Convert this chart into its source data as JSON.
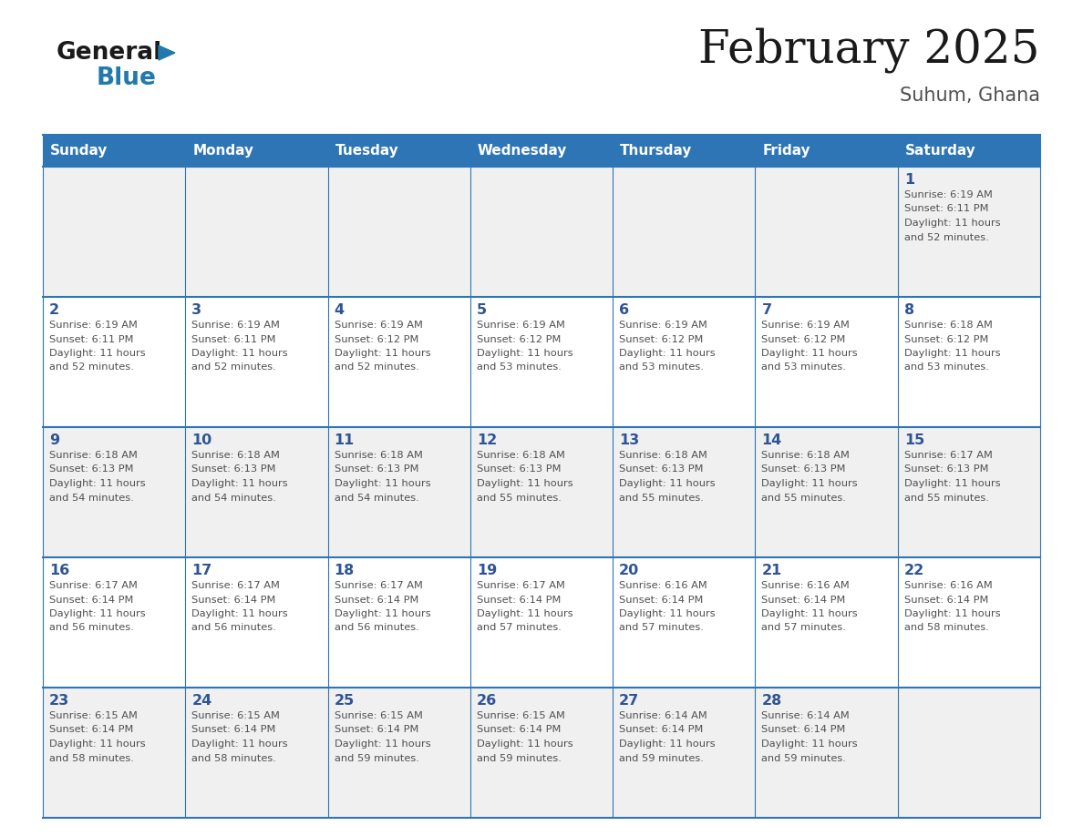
{
  "title": "February 2025",
  "subtitle": "Suhum, Ghana",
  "days_of_week": [
    "Sunday",
    "Monday",
    "Tuesday",
    "Wednesday",
    "Thursday",
    "Friday",
    "Saturday"
  ],
  "header_bg": "#2E75B6",
  "header_text_color": "#FFFFFF",
  "row_bg_odd": "#F0F0F0",
  "row_bg_even": "#FFFFFF",
  "border_color": "#2E75B6",
  "day_number_color": "#2E5496",
  "text_color": "#505050",
  "title_color": "#1a1a1a",
  "subtitle_color": "#505050",
  "calendar": [
    [
      null,
      null,
      null,
      null,
      null,
      null,
      {
        "day": 1,
        "sunrise": "6:19 AM",
        "sunset": "6:11 PM",
        "daylight_h": "11 hours",
        "daylight_m": "52 minutes"
      }
    ],
    [
      {
        "day": 2,
        "sunrise": "6:19 AM",
        "sunset": "6:11 PM",
        "daylight_h": "11 hours",
        "daylight_m": "52 minutes"
      },
      {
        "day": 3,
        "sunrise": "6:19 AM",
        "sunset": "6:11 PM",
        "daylight_h": "11 hours",
        "daylight_m": "52 minutes"
      },
      {
        "day": 4,
        "sunrise": "6:19 AM",
        "sunset": "6:12 PM",
        "daylight_h": "11 hours",
        "daylight_m": "52 minutes"
      },
      {
        "day": 5,
        "sunrise": "6:19 AM",
        "sunset": "6:12 PM",
        "daylight_h": "11 hours",
        "daylight_m": "53 minutes"
      },
      {
        "day": 6,
        "sunrise": "6:19 AM",
        "sunset": "6:12 PM",
        "daylight_h": "11 hours",
        "daylight_m": "53 minutes"
      },
      {
        "day": 7,
        "sunrise": "6:19 AM",
        "sunset": "6:12 PM",
        "daylight_h": "11 hours",
        "daylight_m": "53 minutes"
      },
      {
        "day": 8,
        "sunrise": "6:18 AM",
        "sunset": "6:12 PM",
        "daylight_h": "11 hours",
        "daylight_m": "53 minutes"
      }
    ],
    [
      {
        "day": 9,
        "sunrise": "6:18 AM",
        "sunset": "6:13 PM",
        "daylight_h": "11 hours",
        "daylight_m": "54 minutes"
      },
      {
        "day": 10,
        "sunrise": "6:18 AM",
        "sunset": "6:13 PM",
        "daylight_h": "11 hours",
        "daylight_m": "54 minutes"
      },
      {
        "day": 11,
        "sunrise": "6:18 AM",
        "sunset": "6:13 PM",
        "daylight_h": "11 hours",
        "daylight_m": "54 minutes"
      },
      {
        "day": 12,
        "sunrise": "6:18 AM",
        "sunset": "6:13 PM",
        "daylight_h": "11 hours",
        "daylight_m": "55 minutes"
      },
      {
        "day": 13,
        "sunrise": "6:18 AM",
        "sunset": "6:13 PM",
        "daylight_h": "11 hours",
        "daylight_m": "55 minutes"
      },
      {
        "day": 14,
        "sunrise": "6:18 AM",
        "sunset": "6:13 PM",
        "daylight_h": "11 hours",
        "daylight_m": "55 minutes"
      },
      {
        "day": 15,
        "sunrise": "6:17 AM",
        "sunset": "6:13 PM",
        "daylight_h": "11 hours",
        "daylight_m": "55 minutes"
      }
    ],
    [
      {
        "day": 16,
        "sunrise": "6:17 AM",
        "sunset": "6:14 PM",
        "daylight_h": "11 hours",
        "daylight_m": "56 minutes"
      },
      {
        "day": 17,
        "sunrise": "6:17 AM",
        "sunset": "6:14 PM",
        "daylight_h": "11 hours",
        "daylight_m": "56 minutes"
      },
      {
        "day": 18,
        "sunrise": "6:17 AM",
        "sunset": "6:14 PM",
        "daylight_h": "11 hours",
        "daylight_m": "56 minutes"
      },
      {
        "day": 19,
        "sunrise": "6:17 AM",
        "sunset": "6:14 PM",
        "daylight_h": "11 hours",
        "daylight_m": "57 minutes"
      },
      {
        "day": 20,
        "sunrise": "6:16 AM",
        "sunset": "6:14 PM",
        "daylight_h": "11 hours",
        "daylight_m": "57 minutes"
      },
      {
        "day": 21,
        "sunrise": "6:16 AM",
        "sunset": "6:14 PM",
        "daylight_h": "11 hours",
        "daylight_m": "57 minutes"
      },
      {
        "day": 22,
        "sunrise": "6:16 AM",
        "sunset": "6:14 PM",
        "daylight_h": "11 hours",
        "daylight_m": "58 minutes"
      }
    ],
    [
      {
        "day": 23,
        "sunrise": "6:15 AM",
        "sunset": "6:14 PM",
        "daylight_h": "11 hours",
        "daylight_m": "58 minutes"
      },
      {
        "day": 24,
        "sunrise": "6:15 AM",
        "sunset": "6:14 PM",
        "daylight_h": "11 hours",
        "daylight_m": "58 minutes"
      },
      {
        "day": 25,
        "sunrise": "6:15 AM",
        "sunset": "6:14 PM",
        "daylight_h": "11 hours",
        "daylight_m": "59 minutes"
      },
      {
        "day": 26,
        "sunrise": "6:15 AM",
        "sunset": "6:14 PM",
        "daylight_h": "11 hours",
        "daylight_m": "59 minutes"
      },
      {
        "day": 27,
        "sunrise": "6:14 AM",
        "sunset": "6:14 PM",
        "daylight_h": "11 hours",
        "daylight_m": "59 minutes"
      },
      {
        "day": 28,
        "sunrise": "6:14 AM",
        "sunset": "6:14 PM",
        "daylight_h": "11 hours",
        "daylight_m": "59 minutes"
      },
      null
    ]
  ],
  "logo_color_general": "#1a1a1a",
  "logo_color_blue": "#2179AE",
  "logo_triangle_color": "#2179AE"
}
